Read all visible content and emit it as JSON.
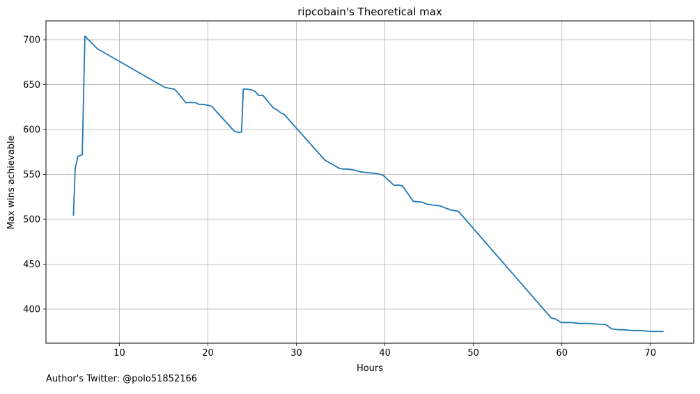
{
  "footer": {
    "text": "Author's Twitter: @polo51852166"
  },
  "chart_data": {
    "type": "line",
    "title": "ripcobain's Theoretical max",
    "xlabel": "Hours",
    "ylabel": "Max wins achievable",
    "xlim": [
      1.7,
      74.9
    ],
    "ylim": [
      362,
      721
    ],
    "xticks": [
      10,
      20,
      30,
      40,
      50,
      60,
      70
    ],
    "yticks": [
      400,
      450,
      500,
      550,
      600,
      650,
      700
    ],
    "grid": true,
    "line_color": "#1f77b4",
    "series": [
      {
        "x": [
          4.8,
          5.0,
          5.3,
          5.8,
          6.1,
          6.3,
          7.5,
          15.1,
          15.6,
          16.2,
          16.6,
          17.5,
          18.0,
          18.6,
          19.0,
          19.5,
          20.0,
          20.4,
          23.0,
          23.3,
          23.6,
          23.8,
          24.0,
          24.4,
          25.0,
          25.4,
          25.7,
          26.2,
          27.4,
          27.8,
          28.3,
          28.6,
          33.2,
          34.8,
          35.2,
          35.7,
          36.5,
          37.2,
          38.0,
          39.0,
          39.5,
          39.8,
          41.0,
          41.6,
          42.0,
          43.2,
          44.2,
          44.7,
          45.3,
          46.2,
          47.0,
          47.6,
          48.3,
          58.8,
          59.3,
          59.9,
          60.3,
          61.0,
          62.0,
          63.0,
          64.2,
          64.9,
          65.2,
          65.6,
          66.4,
          67.0,
          68.0,
          69.0,
          70.0,
          70.8,
          71.5
        ],
        "y": [
          504,
          556,
          570,
          572,
          704,
          702,
          690,
          647,
          646,
          645,
          641,
          630,
          630,
          630,
          628,
          628,
          627,
          626,
          598,
          597,
          597,
          597,
          645,
          645,
          644,
          642,
          638,
          638,
          624,
          622,
          618,
          617,
          566,
          557,
          556,
          556,
          555,
          553,
          552,
          551,
          550,
          549,
          538,
          538,
          537,
          520,
          519,
          517,
          516,
          515,
          512,
          510,
          509,
          390,
          389,
          385,
          385,
          385,
          384,
          384,
          383,
          383,
          381,
          378,
          377,
          377,
          376,
          376,
          375,
          375,
          375
        ]
      }
    ]
  }
}
